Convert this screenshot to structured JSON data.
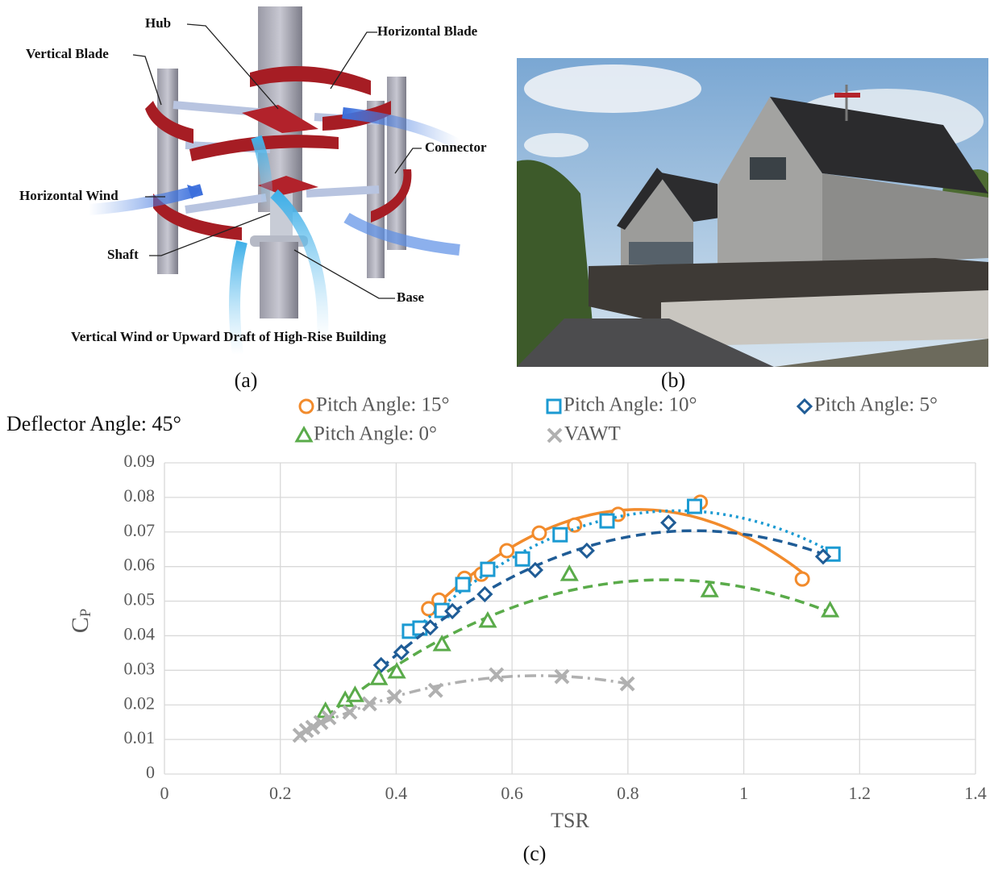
{
  "diagram": {
    "labels": [
      "Hub",
      "Horizontal Blade",
      "Vertical Blade",
      "Connector",
      "Horizontal Wind",
      "Shaft",
      "Base",
      "Vertical Wind or Upward Draft of High-Rise Building"
    ]
  },
  "panel_labels": [
    "(a)",
    "(b)",
    "(c)"
  ],
  "chart_data": {
    "type": "scatter",
    "title": "Deflector Angle: 45°",
    "x_label": "TSR",
    "y_label": "C",
    "y_label_sub": "P",
    "xlim": [
      0,
      1.4
    ],
    "xticks": [
      0,
      0.2,
      0.4,
      0.6,
      0.8,
      1,
      1.2,
      1.4
    ],
    "ylim": [
      0,
      0.09
    ],
    "yticks": [
      0,
      0.01,
      0.02,
      0.03,
      0.04,
      0.05,
      0.06,
      0.07,
      0.08,
      0.09
    ],
    "grid": true,
    "trendline": "polynomial",
    "series": [
      {
        "name": "Pitch Angle: 15°",
        "color": "#f28b2c",
        "marker": "circle",
        "line_style": "solid",
        "x": [
          0.456,
          0.474,
          0.518,
          0.547,
          0.591,
          0.647,
          0.708,
          0.783,
          0.925,
          1.101
        ],
        "values": [
          0.0478,
          0.0503,
          0.0566,
          0.0578,
          0.0646,
          0.0697,
          0.072,
          0.0751,
          0.0786,
          0.0564
        ]
      },
      {
        "name": "Pitch Angle: 10°",
        "color": "#1b9ad2",
        "marker": "square",
        "line_style": "dotted",
        "x": [
          0.423,
          0.441,
          0.479,
          0.515,
          0.558,
          0.618,
          0.683,
          0.764,
          0.915,
          1.154
        ],
        "values": [
          0.0413,
          0.0422,
          0.0473,
          0.0548,
          0.0592,
          0.0622,
          0.0692,
          0.0732,
          0.0774,
          0.0636
        ]
      },
      {
        "name": "Pitch Angle: 5°",
        "color": "#1f5c96",
        "marker": "diamond",
        "line_style": "dashed",
        "x": [
          0.374,
          0.409,
          0.459,
          0.497,
          0.553,
          0.64,
          0.729,
          0.87,
          1.137
        ],
        "values": [
          0.0315,
          0.0352,
          0.0424,
          0.0471,
          0.052,
          0.059,
          0.0646,
          0.0727,
          0.0629
        ]
      },
      {
        "name": "Pitch Angle: 0°",
        "color": "#5aab4a",
        "marker": "triangle",
        "line_style": "dashed",
        "x": [
          0.278,
          0.312,
          0.329,
          0.37,
          0.401,
          0.479,
          0.558,
          0.699,
          0.941,
          1.149
        ],
        "values": [
          0.0182,
          0.0214,
          0.0228,
          0.0277,
          0.0296,
          0.0375,
          0.0443,
          0.0578,
          0.0531,
          0.0473
        ]
      },
      {
        "name": "VAWT",
        "color": "#b0b0b0",
        "marker": "x",
        "line_style": "dashdot",
        "x": [
          0.234,
          0.245,
          0.256,
          0.27,
          0.284,
          0.32,
          0.354,
          0.397,
          0.468,
          0.573,
          0.686,
          0.799
        ],
        "values": [
          0.0112,
          0.0126,
          0.0135,
          0.0149,
          0.0163,
          0.0179,
          0.0203,
          0.0224,
          0.0242,
          0.0287,
          0.0282,
          0.0261
        ]
      }
    ]
  }
}
